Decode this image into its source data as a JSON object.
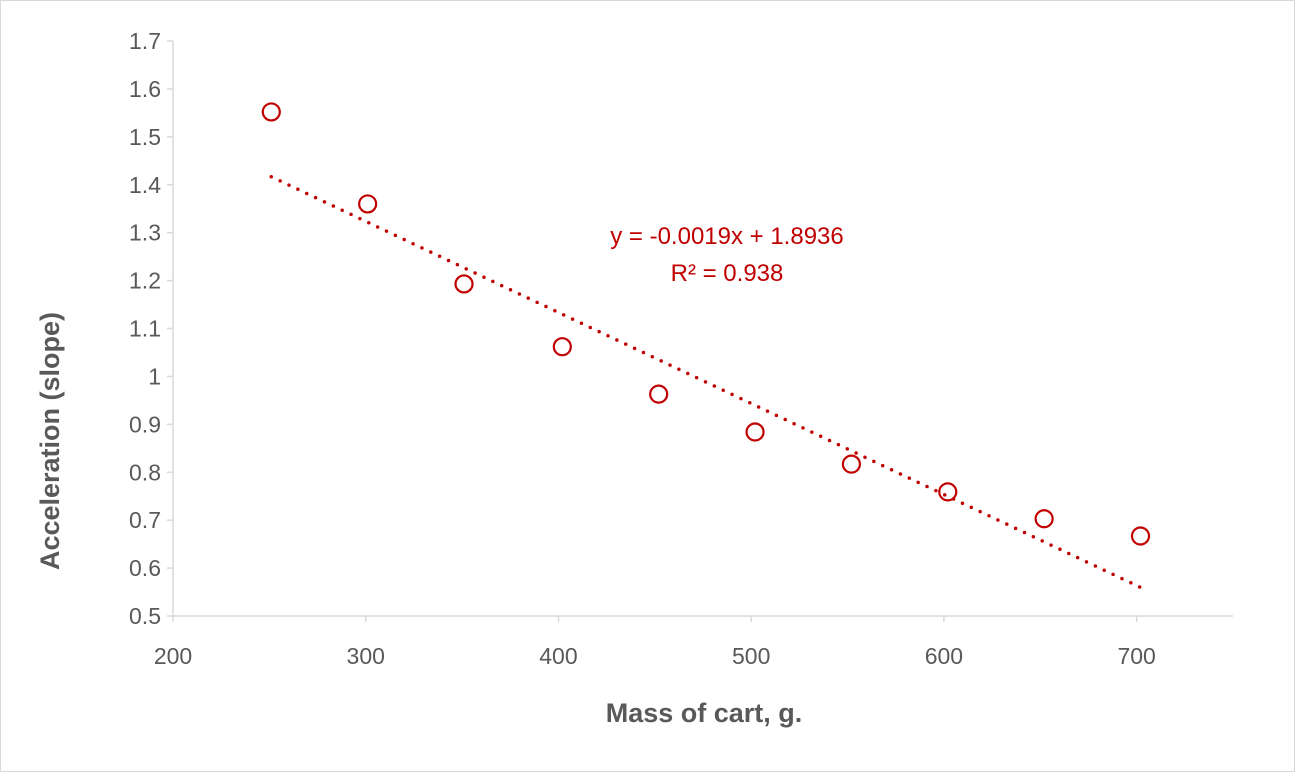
{
  "chart_data": {
    "type": "scatter",
    "title": "",
    "xlabel": "Mass of cart, g.",
    "ylabel": "Acceleration (slope)",
    "xlim": [
      200,
      750
    ],
    "ylim": [
      0.5,
      1.7
    ],
    "x_ticks": [
      200,
      300,
      400,
      500,
      600,
      700
    ],
    "x_tick_labels": [
      "200",
      "300",
      "400",
      "500",
      "600",
      "700"
    ],
    "y_ticks": [
      0.5,
      0.6,
      0.7,
      0.8,
      0.9,
      1.0,
      1.1,
      1.2,
      1.3,
      1.4,
      1.5,
      1.6,
      1.7
    ],
    "y_tick_labels": [
      "0.5",
      "0.6",
      "0.7",
      "0.8",
      "0.9",
      "1",
      "1.1",
      "1.2",
      "1.3",
      "1.4",
      "1.5",
      "1.6",
      "1.7"
    ],
    "grid": false,
    "series": [
      {
        "name": "Acceleration",
        "color": "#c00000",
        "marker": "open-circle",
        "x": [
          251,
          301,
          351,
          402,
          452,
          502,
          552,
          602,
          652,
          702
        ],
        "y": [
          1.552,
          1.36,
          1.193,
          1.062,
          0.963,
          0.884,
          0.817,
          0.759,
          0.703,
          0.667
        ]
      }
    ],
    "trendline": {
      "type": "linear",
      "slope": -0.0019,
      "intercept": 1.8936,
      "x_range": [
        251,
        702
      ],
      "color": "#c00000",
      "style": "dotted",
      "equation_label": "y = -0.0019x + 1.8936",
      "r2_label": "R² = 0.938"
    }
  }
}
